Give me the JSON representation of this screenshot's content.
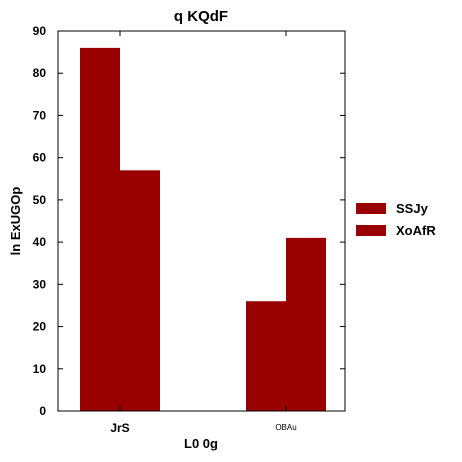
{
  "chart_data": {
    "type": "bar",
    "title": "q KQdF",
    "xlabel": "L0 0g",
    "ylabel": "ln ExUGOp",
    "categories": [
      "JrS",
      "OBAu"
    ],
    "series": [
      {
        "name": "SSJy",
        "values": [
          86,
          26
        ],
        "color": "#990000"
      },
      {
        "name": "XoAfR",
        "values": [
          57,
          41
        ],
        "color": "#990000"
      }
    ],
    "ylim": [
      0,
      90
    ],
    "yticks": [
      0,
      10,
      20,
      30,
      40,
      50,
      60,
      70,
      80,
      90
    ],
    "grid": false,
    "legend": "right"
  }
}
